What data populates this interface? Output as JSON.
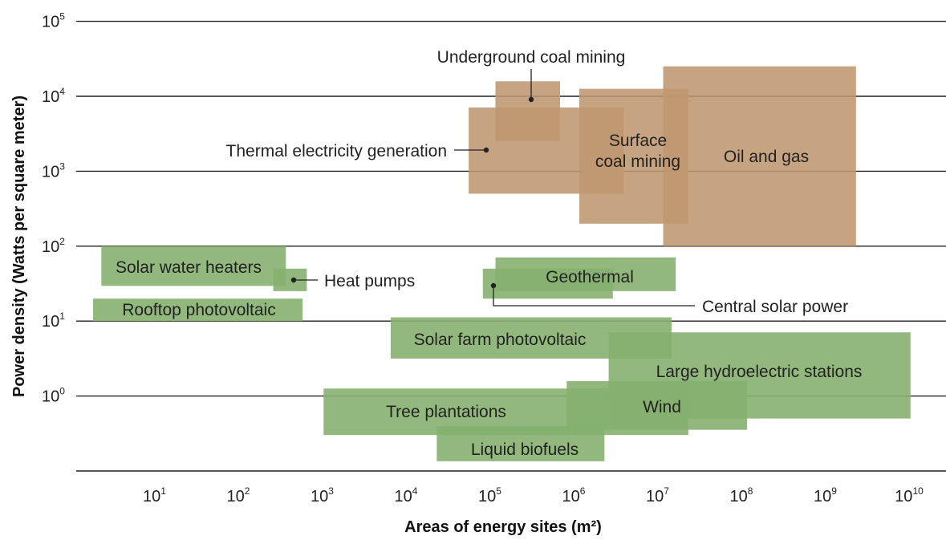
{
  "chart_data": {
    "type": "range-box",
    "xlabel": "Areas of energy sites (m²)",
    "ylabel": "Power density (Watts per square meter)",
    "x_scale": "log10",
    "y_scale": "log10",
    "xlim_log10": [
      0.0,
      10.2
    ],
    "ylim_log10": [
      -1.0,
      5.0
    ],
    "x_ticks_log10": [
      1,
      2,
      3,
      4,
      5,
      6,
      7,
      8,
      9,
      10
    ],
    "y_ticks_log10": [
      0,
      1,
      2,
      3,
      4,
      5
    ],
    "tick_base": "10",
    "grid": "horizontal",
    "colors": {
      "fossil": "#bf9770",
      "renewable": "#86b06f",
      "grid": "#222222",
      "text": "#222222"
    },
    "series": [
      {
        "name": "Underground coal mining",
        "group": "fossil",
        "x_log10": [
          5.0,
          5.77
        ],
        "y_log10": [
          3.4,
          4.2
        ],
        "label_shown": "callout"
      },
      {
        "name": "Thermal electricity generation",
        "group": "fossil",
        "x_log10": [
          4.68,
          6.53
        ],
        "y_log10": [
          2.7,
          3.85
        ],
        "label_shown": "callout"
      },
      {
        "name": "Surface coal mining",
        "group": "fossil",
        "x_log10": [
          6.0,
          7.3
        ],
        "y_log10": [
          2.3,
          4.1
        ],
        "label_lines": [
          "Surface",
          "coal mining"
        ]
      },
      {
        "name": "Oil and gas",
        "group": "fossil",
        "x_log10": [
          7.0,
          9.3
        ],
        "y_log10": [
          2.0,
          4.4
        ]
      },
      {
        "name": "Solar water heaters",
        "group": "renewable",
        "x_log10": [
          0.3,
          2.5
        ],
        "y_log10": [
          1.47,
          2.0
        ]
      },
      {
        "name": "Heat pumps",
        "group": "renewable",
        "x_log10": [
          2.35,
          2.75
        ],
        "y_log10": [
          1.4,
          1.7
        ],
        "label_shown": "callout"
      },
      {
        "name": "Rooftop photovoltaic",
        "group": "renewable",
        "x_log10": [
          0.2,
          2.7
        ],
        "y_log10": [
          1.0,
          1.3
        ]
      },
      {
        "name": "Geothermal",
        "group": "renewable",
        "x_log10": [
          5.0,
          7.15
        ],
        "y_log10": [
          1.4,
          1.85
        ]
      },
      {
        "name": "Central solar power",
        "group": "renewable",
        "x_log10": [
          4.85,
          6.4
        ],
        "y_log10": [
          1.3,
          1.7
        ],
        "label_shown": "callout"
      },
      {
        "name": "Solar farm photovoltaic",
        "group": "renewable",
        "x_log10": [
          3.75,
          7.1
        ],
        "y_log10": [
          0.5,
          1.05
        ]
      },
      {
        "name": "Large hydroelectric stations",
        "group": "renewable",
        "x_log10": [
          6.35,
          9.95
        ],
        "y_log10": [
          -0.3,
          0.85
        ]
      },
      {
        "name": "Wind",
        "group": "renewable",
        "x_log10": [
          5.85,
          8.0
        ],
        "y_log10": [
          -0.45,
          0.2
        ]
      },
      {
        "name": "Tree plantations",
        "group": "renewable",
        "x_log10": [
          2.95,
          7.3
        ],
        "y_log10": [
          -0.52,
          0.1
        ]
      },
      {
        "name": "Liquid biofuels",
        "group": "renewable",
        "x_log10": [
          4.3,
          6.3
        ],
        "y_log10": [
          -0.87,
          -0.4
        ]
      }
    ]
  }
}
